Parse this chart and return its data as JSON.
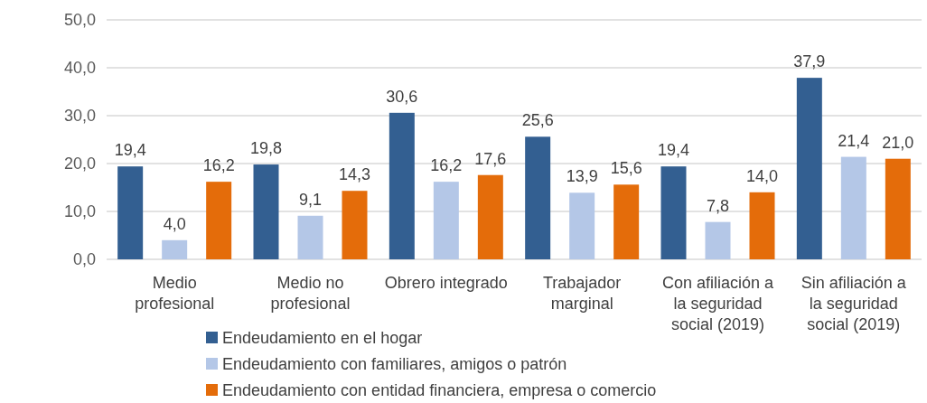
{
  "chart_data": {
    "type": "bar",
    "categories": [
      "Medio profesional",
      "Medio no profesional",
      "Obrero integrado",
      "Trabajador marginal",
      "Con afiliación a la seguridad social (2019)",
      "Sin afiliación a la seguridad social (2019)"
    ],
    "series": [
      {
        "name": "Endeudamiento en el hogar",
        "color": "#335f91",
        "values": [
          19.4,
          19.8,
          30.6,
          25.6,
          19.4,
          37.9
        ],
        "value_labels": [
          "19,4",
          "19,8",
          "30,6",
          "25,6",
          "19,4",
          "37,9"
        ]
      },
      {
        "name": "Endeudamiento con familiares, amigos o patrón",
        "color": "#b4c7e7",
        "values": [
          4.0,
          9.1,
          16.2,
          13.9,
          7.8,
          21.4
        ],
        "value_labels": [
          "4,0",
          "9,1",
          "16,2",
          "13,9",
          "7,8",
          "21,4"
        ]
      },
      {
        "name": "Endeudamiento con entidad financiera, empresa o comercio",
        "color": "#e46c0a",
        "values": [
          16.2,
          14.3,
          17.6,
          15.6,
          14.0,
          21.0
        ],
        "value_labels": [
          "16,2",
          "14,3",
          "17,6",
          "15,6",
          "14,0",
          "21,0"
        ]
      }
    ],
    "ylim": [
      0,
      50
    ],
    "yticks": [
      {
        "value": 0,
        "label": "0,0"
      },
      {
        "value": 10,
        "label": "10,0"
      },
      {
        "value": 20,
        "label": "20,0"
      },
      {
        "value": 30,
        "label": "30,0"
      },
      {
        "value": 40,
        "label": "40,0"
      },
      {
        "value": 50,
        "label": "50,0"
      }
    ],
    "grid": "y",
    "legend": "bottom"
  }
}
